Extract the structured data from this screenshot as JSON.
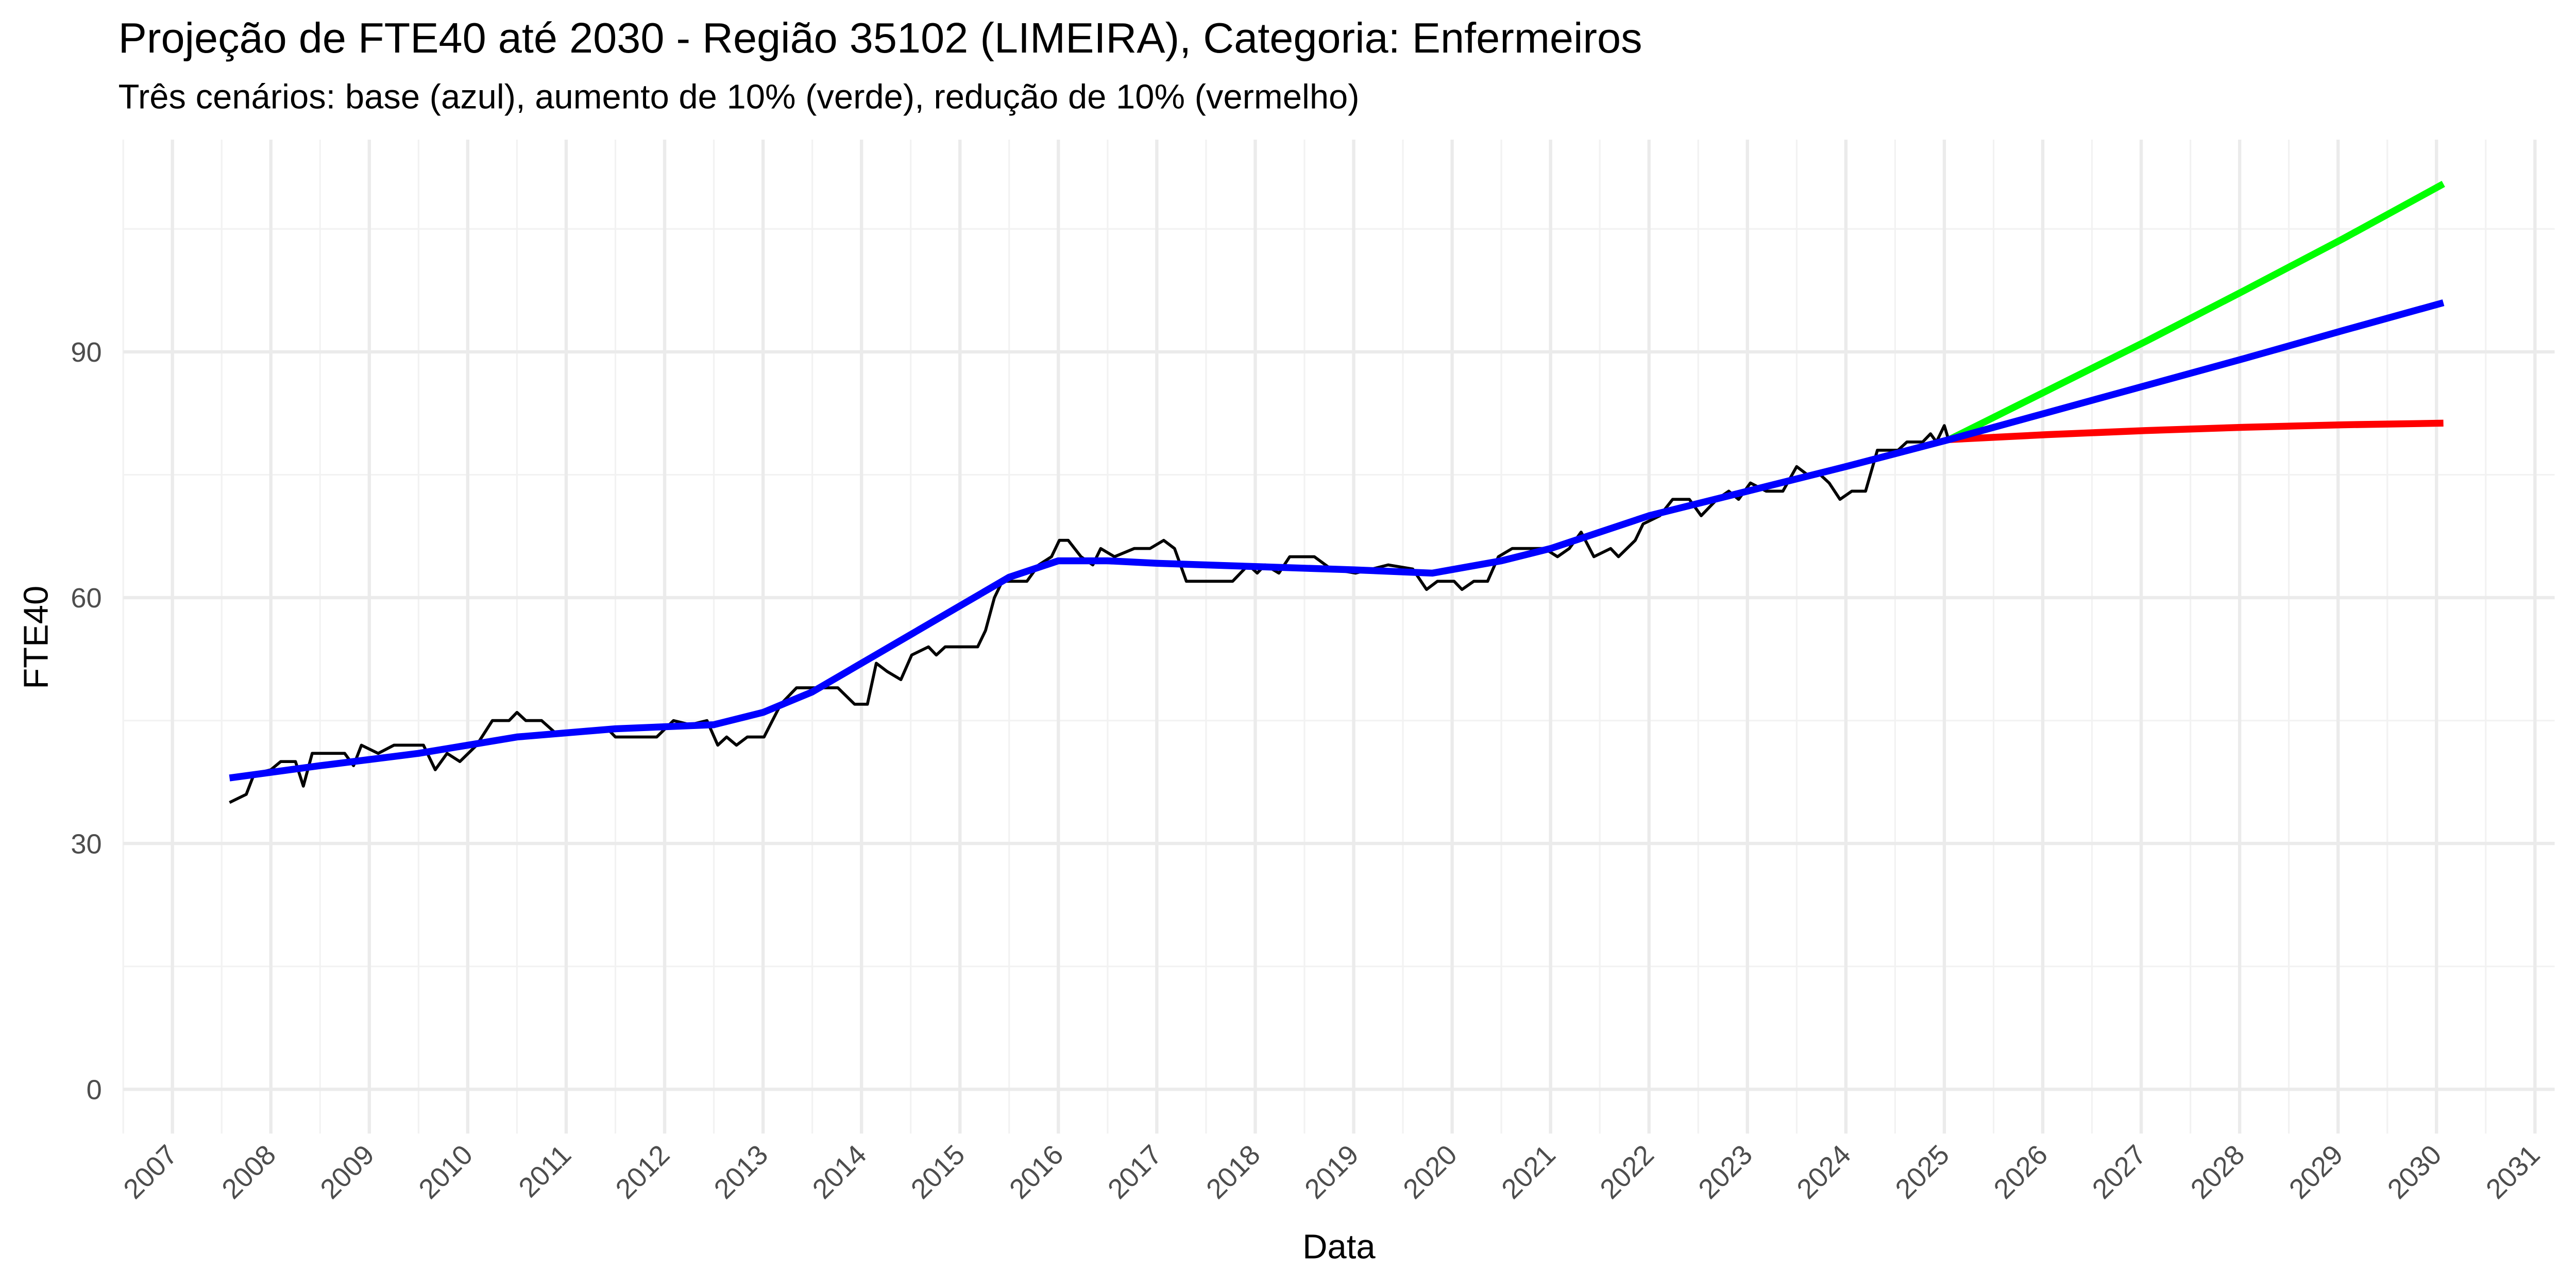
{
  "chart_data": {
    "type": "line",
    "title": "Projeção de FTE40 até 2030 - Região 35102 (LIMEIRA), Categoria: Enfermeiros",
    "subtitle": "Três cenários: base (azul), aumento de 10% (verde), redução de 10% (vermelho)",
    "x_label": "Data",
    "y_label": "FTE40",
    "xlim": [
      2006.5,
      2031.2
    ],
    "ylim": [
      -5.4,
      115.9
    ],
    "xticks": [
      2007,
      2008,
      2009,
      2010,
      2011,
      2012,
      2013,
      2014,
      2015,
      2016,
      2017,
      2018,
      2019,
      2020,
      2021,
      2022,
      2023,
      2024,
      2025,
      2026,
      2027,
      2028,
      2029,
      2030,
      2031
    ],
    "yticks": [
      0,
      30,
      60,
      90
    ],
    "grid": true,
    "series": [
      {
        "color": "#000000",
        "x": [
          2007.58,
          2007.75,
          2007.83,
          2008.0,
          2008.1,
          2008.25,
          2008.33,
          2008.42,
          2008.75,
          2008.84,
          2008.92,
          2009.09,
          2009.25,
          2009.55,
          2009.67,
          2009.79,
          2009.92,
          2010.09,
          2010.25,
          2010.42,
          2010.5,
          2010.59,
          2010.75,
          2010.89,
          2011.09,
          2011.42,
          2011.5,
          2011.92,
          2012.09,
          2012.26,
          2012.43,
          2012.54,
          2012.63,
          2012.73,
          2012.84,
          2013.01,
          2013.18,
          2013.34,
          2013.76,
          2013.93,
          2014.06,
          2014.15,
          2014.26,
          2014.4,
          2014.51,
          2014.68,
          2014.76,
          2014.85,
          2015.18,
          2015.26,
          2015.35,
          2015.43,
          2015.68,
          2015.8,
          2015.93,
          2016.01,
          2016.1,
          2016.23,
          2016.35,
          2016.43,
          2016.57,
          2016.77,
          2016.93,
          2017.07,
          2017.18,
          2017.3,
          2017.77,
          2017.93,
          2018.02,
          2018.1,
          2018.24,
          2018.35,
          2018.6,
          2018.77,
          2019.02,
          2019.35,
          2019.6,
          2019.74,
          2019.85,
          2020.02,
          2020.1,
          2020.22,
          2020.36,
          2020.47,
          2020.61,
          2020.94,
          2021.07,
          2021.19,
          2021.31,
          2021.44,
          2021.61,
          2021.69,
          2021.86,
          2021.94,
          2022.11,
          2022.24,
          2022.41,
          2022.53,
          2022.69,
          2022.81,
          2022.91,
          2023.03,
          2023.19,
          2023.36,
          2023.5,
          2023.61,
          2023.74,
          2023.83,
          2023.94,
          2024.06,
          2024.2,
          2024.32,
          2024.53,
          2024.62,
          2024.78,
          2024.86,
          2024.92,
          2025.0,
          2025.05
        ],
        "values": [
          35,
          36,
          38.5,
          39,
          40,
          40,
          37,
          41,
          41,
          39.5,
          42,
          41,
          42,
          42,
          39,
          41,
          40,
          42,
          45,
          45,
          46,
          45,
          45,
          43.5,
          43.5,
          44,
          43,
          43,
          45,
          44.5,
          45,
          42,
          43,
          42,
          43,
          43,
          47,
          49,
          49,
          47,
          47,
          52,
          51,
          50,
          53,
          54,
          53,
          54,
          54,
          56,
          60,
          62,
          62,
          64,
          65,
          67,
          67,
          65,
          64,
          66,
          65,
          66,
          66,
          67,
          66,
          62,
          62,
          64,
          63,
          64,
          63,
          65,
          65,
          63.5,
          63,
          64,
          63.5,
          61,
          62,
          62,
          61,
          62,
          62,
          65,
          66,
          66,
          65,
          66,
          68,
          65,
          66,
          65,
          67,
          69,
          70,
          72,
          72,
          70,
          72,
          73,
          72,
          74,
          73,
          73,
          76,
          75,
          75,
          74,
          72,
          73,
          73,
          78,
          78,
          79,
          79,
          80,
          79,
          81,
          79
        ]
      },
      {
        "color": "#0000ff",
        "x": [
          2007.58,
          2008.5,
          2009.5,
          2010.5,
          2011.5,
          2012.5,
          2013.0,
          2013.5,
          2014.0,
          2014.5,
          2015.0,
          2015.5,
          2016.0,
          2016.5,
          2017.0,
          2018.0,
          2019.0,
          2019.8,
          2020.5,
          2021.0,
          2021.5,
          2022.0,
          2023.0,
          2024.0,
          2025.05
        ],
        "values": [
          38,
          39.5,
          41,
          43,
          44,
          44.5,
          46,
          48.5,
          52,
          55.5,
          59,
          62.5,
          64.5,
          64.5,
          64.2,
          63.8,
          63.4,
          63,
          64.5,
          66,
          68,
          70,
          73,
          76,
          79.3
        ]
      },
      {
        "color": "#00ff00",
        "x": [
          2025.05,
          2026.05,
          2027.05,
          2028.05,
          2029.05,
          2030.07
        ],
        "values": [
          79.3,
          85.3,
          91.3,
          97.5,
          103.8,
          110.5
        ]
      },
      {
        "color": "#0000ff",
        "x": [
          2025.05,
          2026.05,
          2027.05,
          2028.05,
          2029.05,
          2030.07
        ],
        "values": [
          79.3,
          82.6,
          85.9,
          89.2,
          92.6,
          96
        ]
      },
      {
        "color": "#ff0000",
        "x": [
          2025.05,
          2026.05,
          2027.05,
          2028.05,
          2029.05,
          2030.07
        ],
        "values": [
          79.3,
          79.9,
          80.4,
          80.8,
          81.1,
          81.3
        ]
      }
    ]
  }
}
